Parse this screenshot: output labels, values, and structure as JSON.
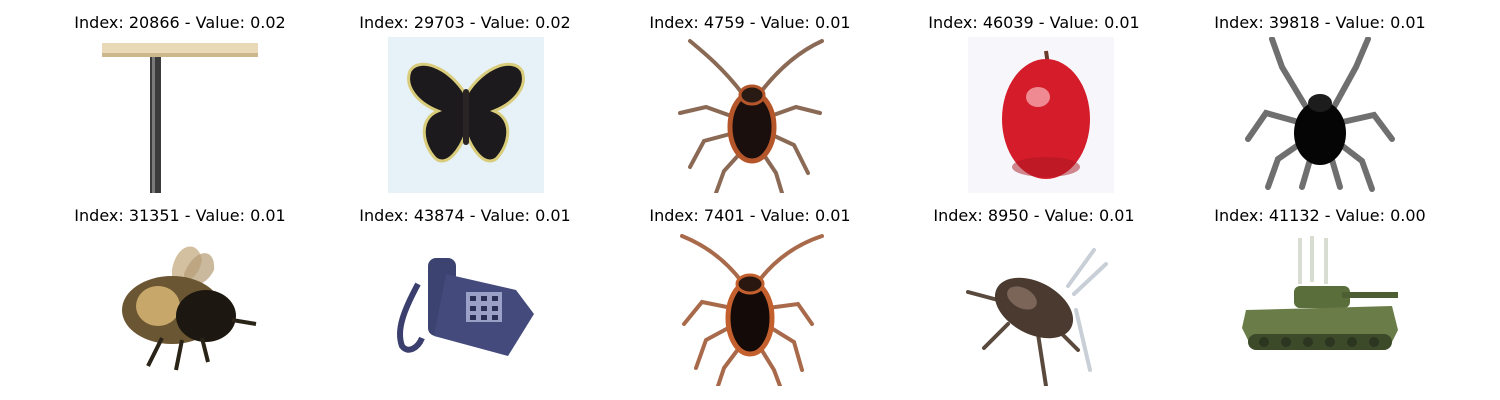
{
  "panels": [
    {
      "title": "Index: 20866 - Value: 0.02",
      "subject": "table-icon"
    },
    {
      "title": "Index: 29703 - Value: 0.02",
      "subject": "butterfly-icon"
    },
    {
      "title": "Index: 4759 - Value: 0.01",
      "subject": "cockroach-icon"
    },
    {
      "title": "Index: 46039 - Value: 0.01",
      "subject": "apple-icon"
    },
    {
      "title": "Index: 39818 - Value: 0.01",
      "subject": "spider-icon"
    },
    {
      "title": "Index: 31351 - Value: 0.01",
      "subject": "bee-icon"
    },
    {
      "title": "Index: 43874 - Value: 0.01",
      "subject": "telephone-icon"
    },
    {
      "title": "Index: 7401 - Value: 0.01",
      "subject": "cockroach-icon"
    },
    {
      "title": "Index: 8950 - Value: 0.01",
      "subject": "beetle-icon"
    },
    {
      "title": "Index: 41132 - Value: 0.00",
      "subject": "tank-icon"
    }
  ]
}
